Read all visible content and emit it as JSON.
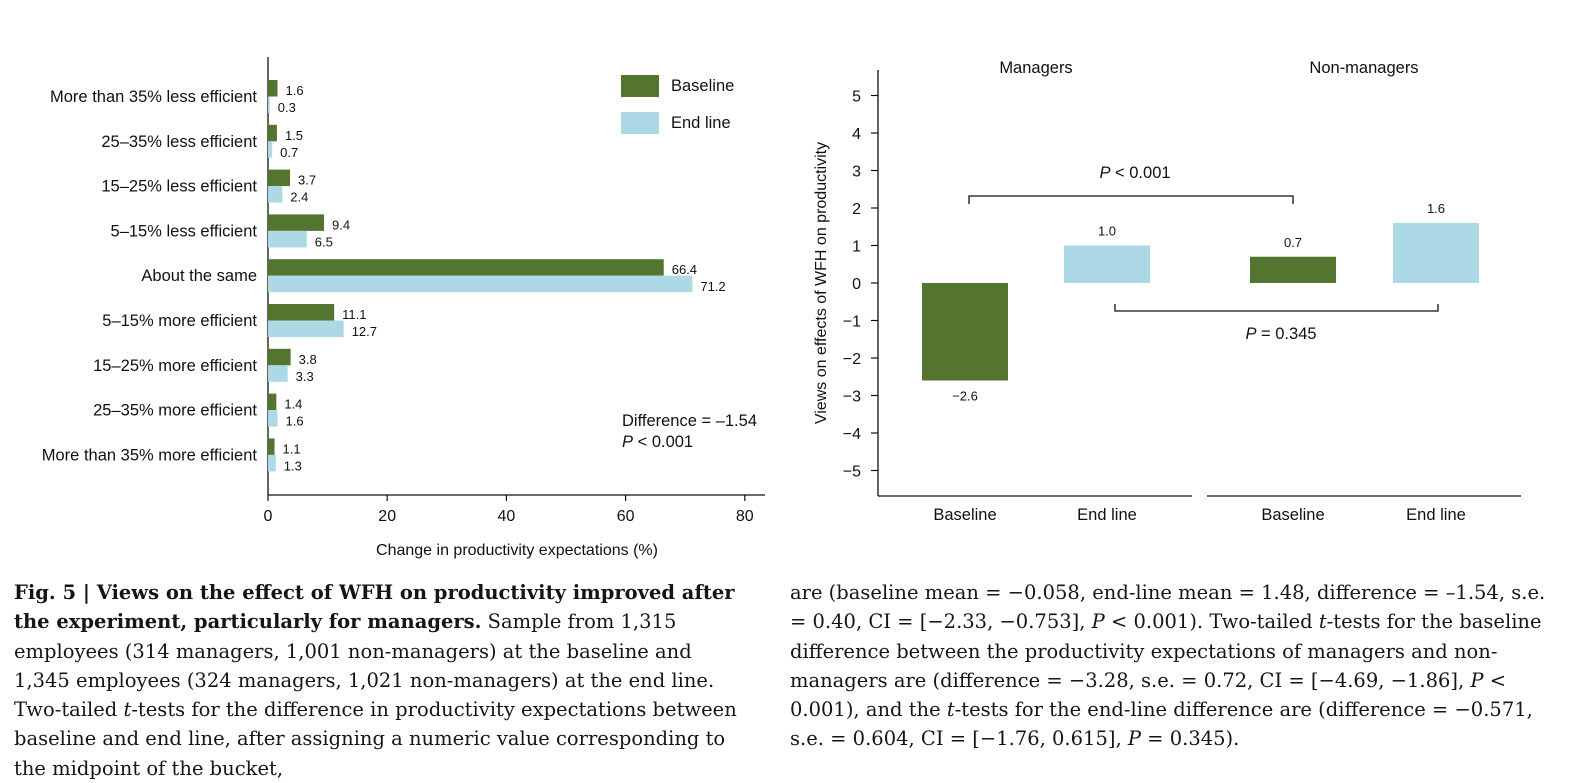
{
  "colors": {
    "baseline": "#547530",
    "endline": "#add8e6",
    "axis": "#111111"
  },
  "chart_data": [
    {
      "type": "bar",
      "orientation": "horizontal",
      "categories": [
        "More than 35% less efficient",
        "25–35% less efficient",
        "15–25% less efficient",
        "5–15% less efficient",
        "About the same",
        "5–15% more efficient",
        "15–25% more efficient",
        "25–35% more efficient",
        "More than 35% more efficient"
      ],
      "series": [
        {
          "name": "Baseline",
          "values": [
            1.6,
            1.5,
            3.7,
            9.4,
            66.4,
            11.1,
            3.8,
            1.4,
            1.1
          ]
        },
        {
          "name": "End line",
          "values": [
            0.3,
            0.7,
            2.4,
            6.5,
            71.2,
            12.7,
            3.3,
            1.6,
            1.3
          ]
        }
      ],
      "xlabel": "Change in productivity expectations (%)",
      "xlim": [
        0,
        82
      ],
      "xticks": [
        "0",
        "20",
        "40",
        "60",
        "80"
      ],
      "legend_position": "top-right",
      "annotation": {
        "line1": "Difference = –1.54",
        "line2_italic": "P",
        "line2_rest": " < 0.001"
      }
    },
    {
      "type": "bar",
      "ylabel": "Views on effects of WFH on productivity",
      "ylim": [
        -5.7,
        5.7
      ],
      "yticks": [
        "5",
        "4",
        "3",
        "2",
        "1",
        "0",
        "−1",
        "−2",
        "−3",
        "−4",
        "−5"
      ],
      "groups": [
        {
          "name": "Managers",
          "categories": [
            "Baseline",
            "End line"
          ],
          "values": [
            -2.6,
            1.0
          ],
          "labels": [
            "−2.6",
            "1.0"
          ]
        },
        {
          "name": "Non-managers",
          "categories": [
            "Baseline",
            "End line"
          ],
          "values": [
            0.7,
            1.6
          ],
          "labels": [
            "0.7",
            "1.6"
          ]
        }
      ],
      "brackets": [
        {
          "italic": "P",
          "rest": " < 0.001",
          "between": "Managers Baseline – Non-managers Baseline"
        },
        {
          "italic": "P",
          "rest": " = 0.345",
          "between": "Managers End line – Non-managers End line"
        }
      ]
    }
  ],
  "caption": {
    "left_html": "<b>Fig. 5 | Views on the effect of WFH on productivity improved after the experiment, particularly for managers.</b> Sample from 1,315 employees (314 managers, 1,001 non-managers) at the baseline and 1,345 employees (324 managers, 1,021 non-managers) at the end line. Two-tailed <i>t</i>-tests for the difference in productivity expectations between baseline and end line, after assigning a numeric value corresponding to the midpoint of the bucket,",
    "right_html": "are (baseline mean = −0.058, end-line mean = 1.48, difference = –1.54, s.e. = 0.40, CI = [−2.33, −0.753], <i>P</i> &lt; 0.001). Two-tailed <i>t</i>-tests for the baseline difference between the productivity expectations of managers and non-managers are (difference = −3.28, s.e. = 0.72, CI = [−4.69, −1.86], <i>P</i> &lt; 0.001), and the <i>t</i>-tests for the end-line difference are (difference = −0.571, s.e. = 0.604, CI = [−1.76, 0.615], <i>P</i> = 0.345)."
  }
}
